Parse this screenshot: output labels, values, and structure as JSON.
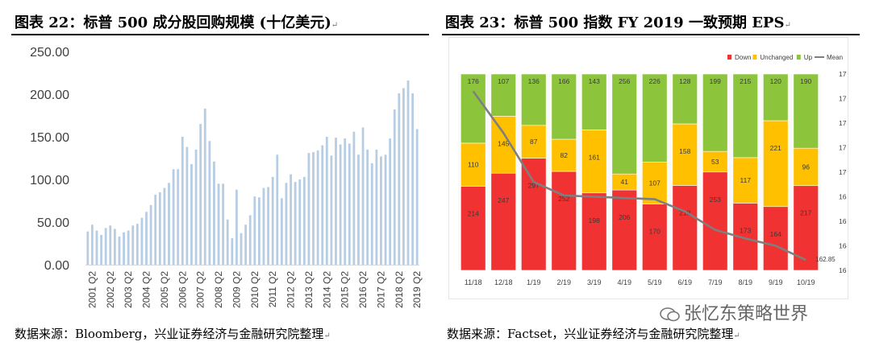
{
  "left": {
    "title": "图表 22：标普 500 成分股回购规模 (十亿美元)",
    "source": "数据来源：Bloomberg，兴业证券经济与金融研究院整理"
  },
  "right": {
    "title": "图表 23：标普 500 指数 FY 2019 一致预期 EPS",
    "source": "数据来源：Factset，兴业证券经济与金融研究院整理"
  },
  "watermark": "张忆东策略世界",
  "paragraph_mark": "↵",
  "colors": {
    "bar": "#b7cde3",
    "down": "#f03232",
    "unchanged": "#ffc000",
    "up": "#8cc43c",
    "mean": "#7f7f7f"
  },
  "chart_data": [
    {
      "type": "bar",
      "title": "标普 500 成分股回购规模 (十亿美元)",
      "ylim": [
        0,
        250
      ],
      "yticks": [
        "0.00",
        "50.00",
        "100.00",
        "150.00",
        "200.00",
        "250.00"
      ],
      "xticks": [
        "2001 Q2",
        "2002 Q2",
        "2003 Q2",
        "2004 Q2",
        "2005 Q2",
        "2006 Q2",
        "2007 Q2",
        "2008 Q2",
        "2009 Q2",
        "2010 Q2",
        "2011 Q2",
        "2012 Q2",
        "2013 Q2",
        "2014 Q2",
        "2015 Q2",
        "2016 Q2",
        "2017 Q2",
        "2018 Q2",
        "2019 Q2"
      ],
      "values": [
        39,
        47,
        40,
        35,
        43,
        46,
        42,
        33,
        38,
        40,
        46,
        48,
        55,
        62,
        70,
        82,
        85,
        90,
        96,
        112,
        112,
        150,
        138,
        118,
        135,
        165,
        183,
        145,
        121,
        95,
        95,
        53,
        31,
        88,
        37,
        47,
        58,
        80,
        79,
        90,
        91,
        103,
        129,
        78,
        96,
        106,
        97,
        100,
        103,
        131,
        132,
        134,
        140,
        150,
        128,
        149,
        141,
        148,
        142,
        156,
        129,
        161,
        135,
        119,
        135,
        127,
        129,
        148,
        182,
        201,
        207,
        216,
        201,
        159
      ]
    },
    {
      "type": "bar",
      "subtype": "stacked_percent_with_line",
      "title": "标普 500 指数 FY 2019 一致预期 EPS",
      "categories": [
        "11/18",
        "12/18",
        "1/19",
        "2/19",
        "3/19",
        "4/19",
        "5/19",
        "6/19",
        "7/19",
        "8/19",
        "9/19",
        "10/19"
      ],
      "series": [
        {
          "name": "Down",
          "values": [
            214,
            247,
            297,
            252,
            198,
            206,
            170,
            218,
            253,
            173,
            164,
            217
          ]
        },
        {
          "name": "Unchanged",
          "values": [
            110,
            145,
            87,
            82,
            161,
            41,
            107,
            158,
            53,
            117,
            221,
            96
          ]
        },
        {
          "name": "Up",
          "values": [
            176,
            107,
            136,
            166,
            143,
            256,
            226,
            128,
            199,
            215,
            120,
            190
          ]
        }
      ],
      "mean_line": {
        "name": "Mean",
        "values": [
          176.6,
          173.2,
          169.2,
          168.1,
          168.0,
          167.9,
          167.8,
          166.8,
          165.3,
          164.6,
          164.0,
          162.85
        ]
      },
      "mean_label": "162.85",
      "y2lim": [
        162,
        178
      ],
      "y2ticks": [
        "162",
        "164",
        "166",
        "168",
        "170",
        "172",
        "174",
        "176",
        "178"
      ]
    }
  ]
}
